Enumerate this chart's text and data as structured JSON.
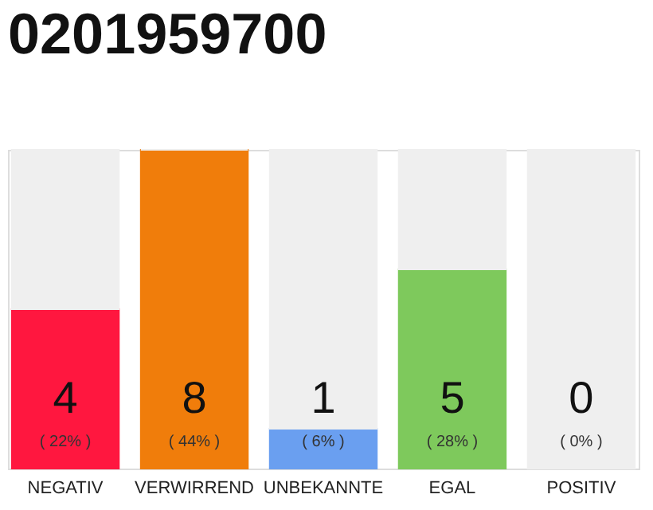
{
  "chart_data": {
    "type": "bar",
    "title": "0201959700",
    "stacked": true,
    "categories": [
      "NEGATIV",
      "VERWIRREND",
      "UNBEKANNTE",
      "EGAL",
      "POSITIV"
    ],
    "series": [
      {
        "colors": [
          "#ff173f",
          "#f07d0b",
          "#6a9ff0",
          "#7ec95c",
          "#23a84a"
        ],
        "values": [
          4,
          8,
          1,
          5,
          0
        ],
        "value_labels": [
          "4",
          "8",
          "1",
          "5",
          "0"
        ]
      },
      {
        "color": "#efefef",
        "values": [
          4,
          0,
          7,
          3,
          8
        ]
      }
    ],
    "ylim": [
      0,
      8
    ],
    "tick_labels": "x",
    "grid": false,
    "annotations": [
      "( 22% )",
      "( 44% )",
      "( 6% )",
      "( 28% )",
      "( 0% )"
    ]
  }
}
